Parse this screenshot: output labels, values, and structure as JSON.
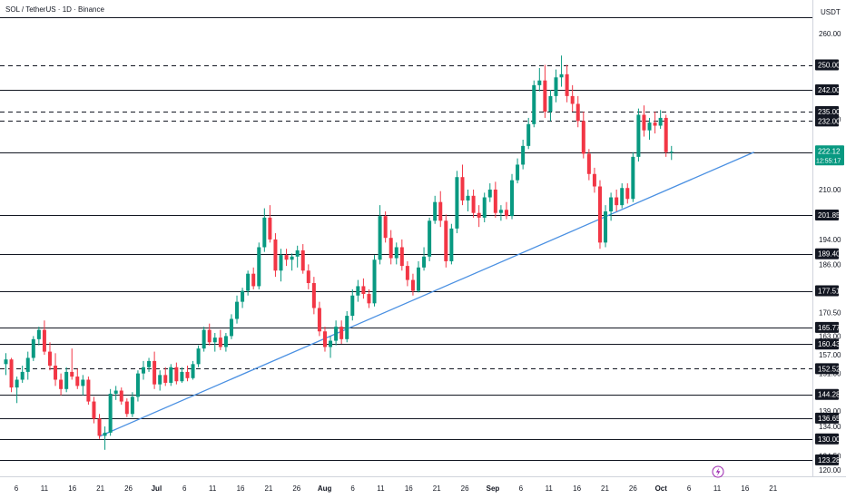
{
  "header": {
    "title": "SOL / TetherUS · 1D · Binance",
    "currency": "USDT"
  },
  "colors": {
    "up": "#089981",
    "down": "#f23645",
    "trendline": "#4a90e2",
    "level": "#131722",
    "axis_bg": "#ffffff"
  },
  "icons": {
    "bolt": "lightning-bolt-icon"
  },
  "chart_data": {
    "type": "candlestick",
    "ylim": [
      118,
      265
    ],
    "x_ticks": [
      "6",
      "11",
      "16",
      "21",
      "26",
      "Jul",
      "6",
      "11",
      "16",
      "21",
      "26",
      "Aug",
      "6",
      "11",
      "16",
      "21",
      "26",
      "Sep",
      "6",
      "11",
      "16",
      "21",
      "26",
      "Oct",
      "6",
      "11",
      "16",
      "21"
    ],
    "y_ticks": [
      120.0,
      124.5,
      134.0,
      139.0,
      151.0,
      157.0,
      163.0,
      170.5,
      186.0,
      194.0,
      210.0,
      232.5,
      260.0
    ],
    "levels": [
      {
        "value": 250.0,
        "label": "250.00",
        "style": "dashed"
      },
      {
        "value": 242.0,
        "label": "242.00",
        "style": "solid"
      },
      {
        "value": 235.0,
        "label": "235.00",
        "style": "dashed"
      },
      {
        "value": 232.0,
        "label": "232.00",
        "style": "dashed"
      },
      {
        "value": 221.78,
        "label": "221.78",
        "style": "solid"
      },
      {
        "value": 201.85,
        "label": "201.85",
        "style": "solid"
      },
      {
        "value": 189.4,
        "label": "189.40",
        "style": "solid"
      },
      {
        "value": 177.51,
        "label": "177.51",
        "style": "solid"
      },
      {
        "value": 165.77,
        "label": "165.77",
        "style": "solid"
      },
      {
        "value": 160.43,
        "label": "160.43",
        "style": "solid"
      },
      {
        "value": 152.52,
        "label": "152.52",
        "style": "dashed"
      },
      {
        "value": 144.28,
        "label": "144.28",
        "style": "solid"
      },
      {
        "value": 136.65,
        "label": "136.65",
        "style": "solid"
      },
      {
        "value": 130.0,
        "label": "130.00",
        "style": "solid"
      },
      {
        "value": 123.28,
        "label": "123.28",
        "style": "solid"
      }
    ],
    "last_price": {
      "value": 222.12,
      "label": "222.12",
      "countdown": "12:55:17"
    },
    "trendline": {
      "start": {
        "x_index": 17,
        "y": 130.8
      },
      "end": {
        "x_index": 136,
        "y": 222.0
      }
    },
    "candles": [
      {
        "o": 154.0,
        "h": 157.5,
        "l": 150.5,
        "c": 155.5
      },
      {
        "o": 155.5,
        "h": 156.0,
        "l": 145.0,
        "c": 146.5
      },
      {
        "o": 146.5,
        "h": 150.0,
        "l": 141.5,
        "c": 149.0
      },
      {
        "o": 149.0,
        "h": 153.5,
        "l": 148.0,
        "c": 151.5
      },
      {
        "o": 151.5,
        "h": 158.0,
        "l": 149.0,
        "c": 156.0
      },
      {
        "o": 156.0,
        "h": 163.0,
        "l": 155.0,
        "c": 162.0
      },
      {
        "o": 162.0,
        "h": 166.0,
        "l": 160.0,
        "c": 165.0
      },
      {
        "o": 165.0,
        "h": 168.0,
        "l": 157.0,
        "c": 158.0
      },
      {
        "o": 158.0,
        "h": 161.0,
        "l": 152.0,
        "c": 153.5
      },
      {
        "o": 153.5,
        "h": 157.5,
        "l": 147.0,
        "c": 149.0
      },
      {
        "o": 149.0,
        "h": 151.0,
        "l": 144.0,
        "c": 146.0
      },
      {
        "o": 146.0,
        "h": 153.0,
        "l": 145.0,
        "c": 151.5
      },
      {
        "o": 151.5,
        "h": 159.0,
        "l": 149.0,
        "c": 150.0
      },
      {
        "o": 150.0,
        "h": 152.5,
        "l": 146.0,
        "c": 147.0
      },
      {
        "o": 147.0,
        "h": 150.5,
        "l": 144.0,
        "c": 149.0
      },
      {
        "o": 149.0,
        "h": 150.0,
        "l": 141.0,
        "c": 142.0
      },
      {
        "o": 142.0,
        "h": 143.5,
        "l": 135.0,
        "c": 136.5
      },
      {
        "o": 136.5,
        "h": 138.0,
        "l": 130.0,
        "c": 131.0
      },
      {
        "o": 131.0,
        "h": 134.0,
        "l": 126.5,
        "c": 132.0
      },
      {
        "o": 132.0,
        "h": 146.0,
        "l": 131.0,
        "c": 144.5
      },
      {
        "o": 144.5,
        "h": 147.0,
        "l": 142.5,
        "c": 145.5
      },
      {
        "o": 145.5,
        "h": 146.5,
        "l": 141.0,
        "c": 142.0
      },
      {
        "o": 142.0,
        "h": 143.0,
        "l": 137.0,
        "c": 138.0
      },
      {
        "o": 138.0,
        "h": 145.0,
        "l": 137.0,
        "c": 143.5
      },
      {
        "o": 143.5,
        "h": 152.0,
        "l": 142.0,
        "c": 151.0
      },
      {
        "o": 151.0,
        "h": 155.0,
        "l": 149.0,
        "c": 153.0
      },
      {
        "o": 153.0,
        "h": 156.0,
        "l": 151.5,
        "c": 155.0
      },
      {
        "o": 155.0,
        "h": 158.0,
        "l": 146.0,
        "c": 147.5
      },
      {
        "o": 147.5,
        "h": 152.0,
        "l": 145.5,
        "c": 150.5
      },
      {
        "o": 150.5,
        "h": 153.0,
        "l": 147.0,
        "c": 148.0
      },
      {
        "o": 148.0,
        "h": 154.0,
        "l": 147.0,
        "c": 153.0
      },
      {
        "o": 153.0,
        "h": 154.5,
        "l": 147.5,
        "c": 148.5
      },
      {
        "o": 148.5,
        "h": 153.0,
        "l": 148.0,
        "c": 151.5
      },
      {
        "o": 151.5,
        "h": 153.5,
        "l": 148.5,
        "c": 149.5
      },
      {
        "o": 149.5,
        "h": 155.0,
        "l": 149.0,
        "c": 154.0
      },
      {
        "o": 154.0,
        "h": 160.0,
        "l": 153.0,
        "c": 159.0
      },
      {
        "o": 159.0,
        "h": 166.0,
        "l": 158.0,
        "c": 165.0
      },
      {
        "o": 165.0,
        "h": 167.0,
        "l": 160.0,
        "c": 161.0
      },
      {
        "o": 161.0,
        "h": 164.0,
        "l": 158.0,
        "c": 162.5
      },
      {
        "o": 162.5,
        "h": 165.0,
        "l": 158.5,
        "c": 159.5
      },
      {
        "o": 159.5,
        "h": 164.0,
        "l": 158.0,
        "c": 163.0
      },
      {
        "o": 163.0,
        "h": 170.0,
        "l": 162.0,
        "c": 168.5
      },
      {
        "o": 168.5,
        "h": 176.0,
        "l": 167.0,
        "c": 174.0
      },
      {
        "o": 174.0,
        "h": 178.5,
        "l": 172.0,
        "c": 177.5
      },
      {
        "o": 177.5,
        "h": 184.0,
        "l": 176.0,
        "c": 183.0
      },
      {
        "o": 183.0,
        "h": 185.0,
        "l": 178.0,
        "c": 179.0
      },
      {
        "o": 179.0,
        "h": 193.0,
        "l": 178.0,
        "c": 191.5
      },
      {
        "o": 191.5,
        "h": 204.0,
        "l": 190.0,
        "c": 201.0
      },
      {
        "o": 201.0,
        "h": 205.0,
        "l": 193.0,
        "c": 194.0
      },
      {
        "o": 194.0,
        "h": 196.0,
        "l": 182.0,
        "c": 184.0
      },
      {
        "o": 184.0,
        "h": 191.0,
        "l": 180.5,
        "c": 189.0
      },
      {
        "o": 189.0,
        "h": 191.0,
        "l": 185.5,
        "c": 187.5
      },
      {
        "o": 187.5,
        "h": 189.5,
        "l": 184.0,
        "c": 188.5
      },
      {
        "o": 188.5,
        "h": 192.0,
        "l": 185.0,
        "c": 190.5
      },
      {
        "o": 190.5,
        "h": 192.5,
        "l": 183.0,
        "c": 184.0
      },
      {
        "o": 184.0,
        "h": 186.0,
        "l": 178.0,
        "c": 180.0
      },
      {
        "o": 180.0,
        "h": 182.0,
        "l": 170.0,
        "c": 172.0
      },
      {
        "o": 172.0,
        "h": 174.0,
        "l": 163.0,
        "c": 164.5
      },
      {
        "o": 164.5,
        "h": 166.0,
        "l": 158.0,
        "c": 159.5
      },
      {
        "o": 159.5,
        "h": 163.0,
        "l": 156.0,
        "c": 161.5
      },
      {
        "o": 161.5,
        "h": 168.0,
        "l": 160.0,
        "c": 166.0
      },
      {
        "o": 166.0,
        "h": 168.0,
        "l": 160.5,
        "c": 162.0
      },
      {
        "o": 162.0,
        "h": 171.0,
        "l": 161.0,
        "c": 169.5
      },
      {
        "o": 169.5,
        "h": 178.0,
        "l": 168.0,
        "c": 176.0
      },
      {
        "o": 176.0,
        "h": 181.0,
        "l": 174.0,
        "c": 179.0
      },
      {
        "o": 179.0,
        "h": 181.5,
        "l": 175.0,
        "c": 176.5
      },
      {
        "o": 176.5,
        "h": 178.0,
        "l": 172.0,
        "c": 173.5
      },
      {
        "o": 173.5,
        "h": 189.0,
        "l": 172.5,
        "c": 187.5
      },
      {
        "o": 187.5,
        "h": 205.0,
        "l": 186.0,
        "c": 201.5
      },
      {
        "o": 201.5,
        "h": 203.0,
        "l": 193.0,
        "c": 194.5
      },
      {
        "o": 194.5,
        "h": 197.0,
        "l": 186.0,
        "c": 188.0
      },
      {
        "o": 188.0,
        "h": 193.0,
        "l": 186.0,
        "c": 191.5
      },
      {
        "o": 191.5,
        "h": 194.0,
        "l": 184.0,
        "c": 185.5
      },
      {
        "o": 185.5,
        "h": 187.0,
        "l": 179.0,
        "c": 181.0
      },
      {
        "o": 181.0,
        "h": 183.0,
        "l": 176.0,
        "c": 177.5
      },
      {
        "o": 177.5,
        "h": 187.0,
        "l": 177.0,
        "c": 185.0
      },
      {
        "o": 185.0,
        "h": 191.5,
        "l": 184.0,
        "c": 188.5
      },
      {
        "o": 188.5,
        "h": 201.0,
        "l": 187.0,
        "c": 200.0
      },
      {
        "o": 200.0,
        "h": 208.0,
        "l": 199.0,
        "c": 206.0
      },
      {
        "o": 206.0,
        "h": 209.5,
        "l": 198.0,
        "c": 200.0
      },
      {
        "o": 200.0,
        "h": 202.0,
        "l": 185.0,
        "c": 187.0
      },
      {
        "o": 187.0,
        "h": 199.0,
        "l": 186.0,
        "c": 197.5
      },
      {
        "o": 197.5,
        "h": 216.0,
        "l": 196.0,
        "c": 214.0
      },
      {
        "o": 214.0,
        "h": 218.0,
        "l": 205.0,
        "c": 206.5
      },
      {
        "o": 206.5,
        "h": 210.0,
        "l": 203.0,
        "c": 208.0
      },
      {
        "o": 208.0,
        "h": 210.0,
        "l": 201.0,
        "c": 202.5
      },
      {
        "o": 202.5,
        "h": 205.0,
        "l": 198.0,
        "c": 201.0
      },
      {
        "o": 201.0,
        "h": 209.0,
        "l": 199.5,
        "c": 207.5
      },
      {
        "o": 207.5,
        "h": 212.0,
        "l": 206.0,
        "c": 210.0
      },
      {
        "o": 210.0,
        "h": 212.5,
        "l": 201.0,
        "c": 202.5
      },
      {
        "o": 202.5,
        "h": 205.0,
        "l": 200.0,
        "c": 203.5
      },
      {
        "o": 203.5,
        "h": 206.0,
        "l": 200.5,
        "c": 201.5
      },
      {
        "o": 201.5,
        "h": 215.0,
        "l": 200.5,
        "c": 213.0
      },
      {
        "o": 213.0,
        "h": 220.0,
        "l": 212.0,
        "c": 218.0
      },
      {
        "o": 218.0,
        "h": 226.0,
        "l": 216.5,
        "c": 224.0
      },
      {
        "o": 224.0,
        "h": 233.0,
        "l": 223.0,
        "c": 231.0
      },
      {
        "o": 231.0,
        "h": 245.0,
        "l": 230.0,
        "c": 243.5
      },
      {
        "o": 243.5,
        "h": 249.0,
        "l": 241.5,
        "c": 245.0
      },
      {
        "o": 245.0,
        "h": 250.0,
        "l": 233.0,
        "c": 235.0
      },
      {
        "o": 235.0,
        "h": 242.0,
        "l": 232.0,
        "c": 240.0
      },
      {
        "o": 240.0,
        "h": 248.5,
        "l": 238.0,
        "c": 246.0
      },
      {
        "o": 246.0,
        "h": 253.0,
        "l": 243.0,
        "c": 247.0
      },
      {
        "o": 247.0,
        "h": 250.0,
        "l": 238.0,
        "c": 240.0
      },
      {
        "o": 240.0,
        "h": 243.5,
        "l": 235.0,
        "c": 237.5
      },
      {
        "o": 237.5,
        "h": 240.0,
        "l": 230.0,
        "c": 232.0
      },
      {
        "o": 232.0,
        "h": 235.0,
        "l": 220.0,
        "c": 221.5
      },
      {
        "o": 221.5,
        "h": 223.0,
        "l": 213.0,
        "c": 215.0
      },
      {
        "o": 215.0,
        "h": 217.0,
        "l": 209.0,
        "c": 211.0
      },
      {
        "o": 211.0,
        "h": 213.0,
        "l": 191.0,
        "c": 193.0
      },
      {
        "o": 193.0,
        "h": 205.0,
        "l": 191.5,
        "c": 203.0
      },
      {
        "o": 203.0,
        "h": 209.0,
        "l": 200.0,
        "c": 207.5
      },
      {
        "o": 207.5,
        "h": 210.0,
        "l": 203.0,
        "c": 205.0
      },
      {
        "o": 205.0,
        "h": 212.0,
        "l": 204.0,
        "c": 210.5
      },
      {
        "o": 210.5,
        "h": 212.0,
        "l": 205.5,
        "c": 207.0
      },
      {
        "o": 207.0,
        "h": 222.0,
        "l": 206.0,
        "c": 220.5
      },
      {
        "o": 220.5,
        "h": 236.0,
        "l": 219.0,
        "c": 234.0
      },
      {
        "o": 234.0,
        "h": 237.0,
        "l": 227.0,
        "c": 229.0
      },
      {
        "o": 229.0,
        "h": 233.0,
        "l": 226.0,
        "c": 231.5
      },
      {
        "o": 231.5,
        "h": 235.0,
        "l": 228.0,
        "c": 230.5
      },
      {
        "o": 230.5,
        "h": 235.5,
        "l": 229.5,
        "c": 233.0
      },
      {
        "o": 233.0,
        "h": 234.0,
        "l": 220.5,
        "c": 222.0
      },
      {
        "o": 222.0,
        "h": 224.0,
        "l": 219.5,
        "c": 222.12
      }
    ]
  }
}
